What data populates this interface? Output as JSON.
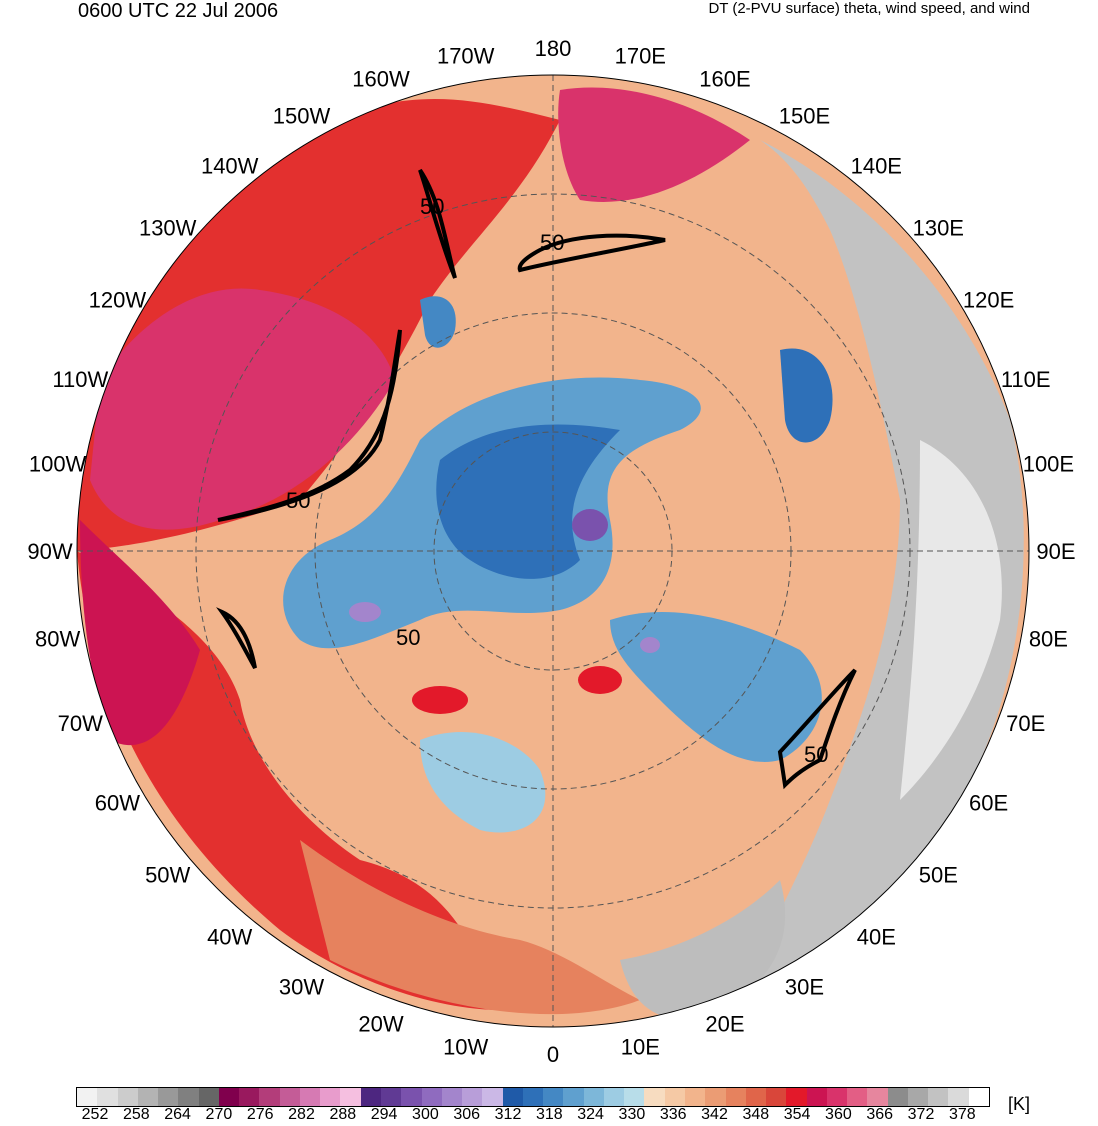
{
  "header": {
    "valid_time": "0600 UTC 22 Jul 2006",
    "product": "DT (2-PVU surface) theta, wind speed, and wind"
  },
  "map": {
    "projection": "north polar stereographic",
    "longitude_labels": [
      "180",
      "170E",
      "160E",
      "150E",
      "140E",
      "130E",
      "120E",
      "110E",
      "100E",
      "90E",
      "80E",
      "70E",
      "60E",
      "50E",
      "40E",
      "30E",
      "20E",
      "10E",
      "0",
      "10W",
      "20W",
      "30W",
      "40W",
      "50W",
      "60W",
      "70W",
      "80W",
      "90W",
      "100W",
      "110W",
      "120W",
      "130W",
      "140W",
      "150W",
      "160W",
      "170W"
    ],
    "contour_labels": [
      "50",
      "50",
      "50",
      "50",
      "50"
    ]
  },
  "colorbar": {
    "units": "[K]",
    "tick_labels": [
      "252",
      "258",
      "264",
      "270",
      "276",
      "282",
      "288",
      "294",
      "300",
      "306",
      "312",
      "318",
      "324",
      "330",
      "336",
      "342",
      "348",
      "354",
      "360",
      "366",
      "372",
      "378"
    ],
    "colors": [
      "#f2f2f2",
      "#e0e0e0",
      "#cccccc",
      "#b3b3b3",
      "#999999",
      "#808080",
      "#666666",
      "#80004d",
      "#99195e",
      "#b33d7a",
      "#c45c97",
      "#d67ab3",
      "#e89ccc",
      "#f5bfe0",
      "#4d2680",
      "#603a94",
      "#7a52ad",
      "#8f6bbf",
      "#a385cc",
      "#b89ed9",
      "#cbb8e6",
      "#1f5aa8",
      "#2e70b8",
      "#4488c4",
      "#5fa0cf",
      "#7db7d9",
      "#9dcce3",
      "#b8dde9",
      "#f7dcc0",
      "#f5c9a5",
      "#f2b48c",
      "#eb9c74",
      "#e6825e",
      "#e0654a",
      "#d9463a",
      "#e3192a",
      "#cc1452",
      "#d9336b",
      "#e35e85",
      "#e6869e",
      "#8c8c8c",
      "#a8a8a8",
      "#c2c2c2",
      "#dadada",
      "#ffffff"
    ]
  }
}
